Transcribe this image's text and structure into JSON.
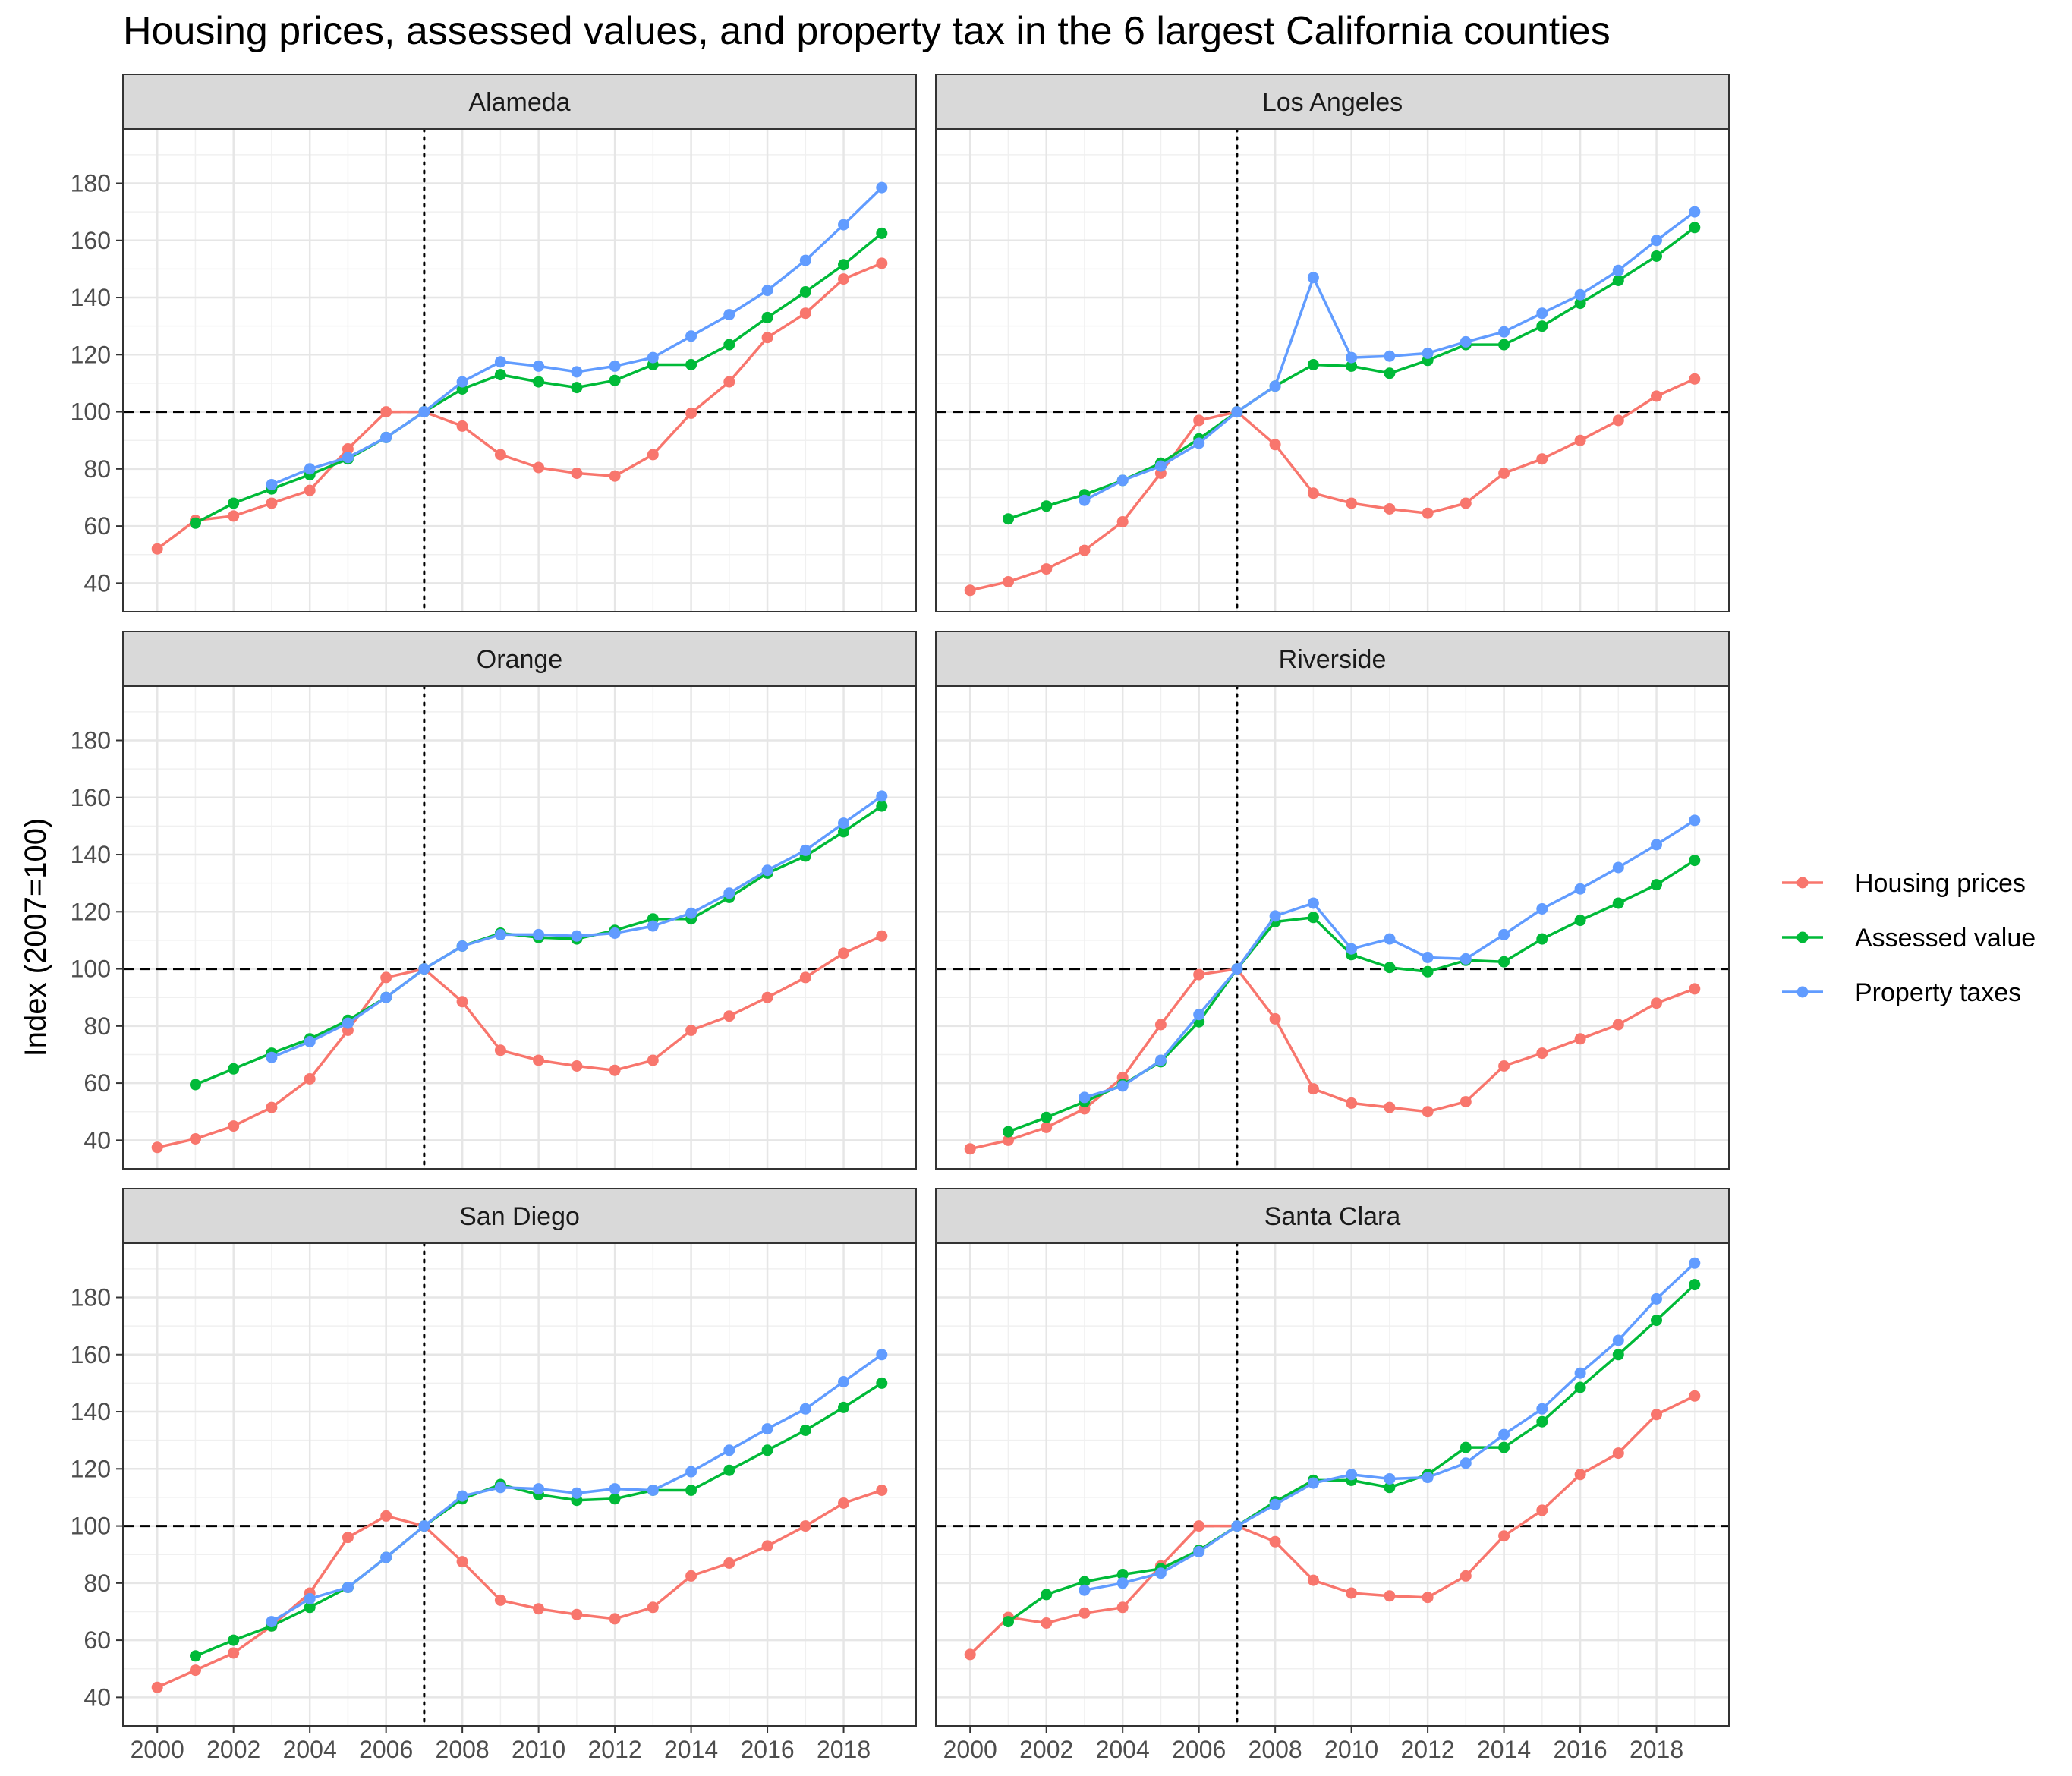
{
  "chart_data": {
    "type": "line",
    "title": "Housing prices, assessed values, and property tax in the 6 largest California counties",
    "ylabel": "Index (2007=100)",
    "xlabel": "",
    "x": [
      2000,
      2001,
      2002,
      2003,
      2004,
      2005,
      2006,
      2007,
      2008,
      2009,
      2010,
      2011,
      2012,
      2013,
      2014,
      2015,
      2016,
      2017,
      2018,
      2019
    ],
    "xlim": [
      1999.1,
      2019.9
    ],
    "ylim": [
      30,
      199
    ],
    "x_ticks": [
      2000,
      2002,
      2004,
      2006,
      2008,
      2010,
      2012,
      2014,
      2016,
      2018
    ],
    "y_ticks": [
      40,
      60,
      80,
      100,
      120,
      140,
      160,
      180
    ],
    "reference_lines": [
      {
        "axis": "y",
        "value": 100,
        "style": "dashed"
      },
      {
        "axis": "x",
        "value": 2007,
        "style": "dotted"
      }
    ],
    "grid": true,
    "legend": {
      "position": "right",
      "entries": [
        {
          "label": "Housing prices",
          "color": "#F8766D"
        },
        {
          "label": "Assessed value",
          "color": "#00BA38"
        },
        {
          "label": "Property taxes",
          "color": "#619CFF"
        }
      ]
    },
    "panels": [
      {
        "name": "Alameda",
        "series": [
          {
            "values": [
              52,
              62,
              63.5,
              68,
              72.5,
              87,
              100,
              100,
              95,
              85,
              80.5,
              78.5,
              77.5,
              85,
              99.5,
              110.5,
              126,
              134.5,
              146.5,
              152
            ],
            "color": "#F8766D"
          },
          {
            "values": [
              null,
              61,
              68,
              73,
              78,
              83.5,
              91,
              100,
              108,
              113,
              110.5,
              108.5,
              111,
              116.5,
              116.5,
              123.5,
              133,
              142,
              151.5,
              162.5
            ],
            "color": "#00BA38"
          },
          {
            "values": [
              null,
              null,
              null,
              74.5,
              80,
              84,
              91,
              100,
              110.5,
              117.5,
              116,
              114,
              116,
              119,
              126.5,
              134,
              142.5,
              153,
              165.5,
              178.5
            ],
            "color": "#619CFF"
          }
        ]
      },
      {
        "name": "Los Angeles",
        "series": [
          {
            "values": [
              37.5,
              40.5,
              45,
              51.5,
              61.5,
              78.5,
              97,
              100,
              88.5,
              71.5,
              68,
              66,
              64.5,
              68,
              78.5,
              83.5,
              90,
              97,
              105.5,
              111.5
            ],
            "color": "#F8766D"
          },
          {
            "values": [
              null,
              62.5,
              67,
              71,
              76,
              82,
              90.5,
              100,
              109,
              116.5,
              116,
              113.5,
              118,
              123.5,
              123.5,
              130,
              138,
              146,
              154.5,
              164.5
            ],
            "color": "#00BA38"
          },
          {
            "values": [
              null,
              null,
              null,
              69,
              76,
              81,
              89,
              100,
              109,
              147,
              119,
              119.5,
              120.5,
              124.5,
              128,
              134.5,
              141,
              149.5,
              160,
              170
            ],
            "color": "#619CFF"
          }
        ]
      },
      {
        "name": "Orange",
        "series": [
          {
            "values": [
              37.5,
              40.5,
              45,
              51.5,
              61.5,
              78.5,
              97,
              100,
              88.5,
              71.5,
              68,
              66,
              64.5,
              68,
              78.5,
              83.5,
              90,
              97,
              105.5,
              111.5
            ],
            "color": "#F8766D"
          },
          {
            "values": [
              null,
              59.5,
              65,
              70.5,
              75.5,
              82,
              90,
              100,
              108,
              112.5,
              111,
              110.5,
              113.5,
              117.5,
              117.5,
              125,
              133.5,
              139.5,
              148,
              157
            ],
            "color": "#00BA38"
          },
          {
            "values": [
              null,
              null,
              null,
              69,
              74.5,
              81,
              90,
              100,
              108,
              112,
              112,
              111.5,
              112.5,
              115,
              119.5,
              126.5,
              134.5,
              141.5,
              151,
              160.5
            ],
            "color": "#619CFF"
          }
        ]
      },
      {
        "name": "Riverside",
        "series": [
          {
            "values": [
              37,
              40,
              44.5,
              51,
              62,
              80.5,
              98,
              100,
              82.5,
              58,
              53,
              51.5,
              50,
              53.5,
              66,
              70.5,
              75.5,
              80.5,
              88,
              93
            ],
            "color": "#F8766D"
          },
          {
            "values": [
              null,
              43,
              48,
              53.5,
              59.5,
              67.5,
              81.5,
              100,
              116.5,
              118,
              105,
              100.5,
              99,
              103,
              102.5,
              110.5,
              117,
              123,
              129.5,
              138
            ],
            "color": "#00BA38"
          },
          {
            "values": [
              null,
              null,
              null,
              55,
              59,
              68,
              84,
              100,
              118.5,
              123,
              107,
              110.5,
              104,
              103.5,
              112,
              121,
              128,
              135.5,
              143.5,
              152
            ],
            "color": "#619CFF"
          }
        ]
      },
      {
        "name": "San Diego",
        "series": [
          {
            "values": [
              43.5,
              49.5,
              55.5,
              65,
              76.5,
              96,
              103.5,
              100,
              87.5,
              74,
              71,
              69,
              67.5,
              71.5,
              82.5,
              87,
              93,
              100,
              108,
              112.5
            ],
            "color": "#F8766D"
          },
          {
            "values": [
              null,
              54.5,
              60,
              65,
              71.5,
              78.5,
              89,
              100,
              109.5,
              114.5,
              111,
              109,
              109.5,
              112.5,
              112.5,
              119.5,
              126.5,
              133.5,
              141.5,
              150
            ],
            "color": "#00BA38"
          },
          {
            "values": [
              null,
              null,
              null,
              66.5,
              74.5,
              78.5,
              89,
              100,
              110.5,
              113.5,
              113,
              111.5,
              113,
              112.5,
              119,
              126.5,
              134,
              141,
              150.5,
              160
            ],
            "color": "#619CFF"
          }
        ]
      },
      {
        "name": "Santa Clara",
        "series": [
          {
            "values": [
              55,
              68,
              66,
              69.5,
              71.5,
              86,
              100,
              100,
              94.5,
              81,
              76.5,
              75.5,
              75,
              82.5,
              96.5,
              105.5,
              118,
              125.5,
              139,
              145.5
            ],
            "color": "#F8766D"
          },
          {
            "values": [
              null,
              66.5,
              76,
              80.5,
              83,
              85,
              91.5,
              100,
              108.5,
              116,
              116,
              113.5,
              118,
              127.5,
              127.5,
              136.5,
              148.5,
              160,
              172,
              184.5
            ],
            "color": "#00BA38"
          },
          {
            "values": [
              null,
              null,
              null,
              77.5,
              80,
              83.5,
              91,
              100,
              107.5,
              115,
              118,
              116.5,
              117,
              122,
              132,
              141,
              153.5,
              165,
              179.5,
              192
            ],
            "color": "#619CFF"
          }
        ]
      }
    ]
  }
}
